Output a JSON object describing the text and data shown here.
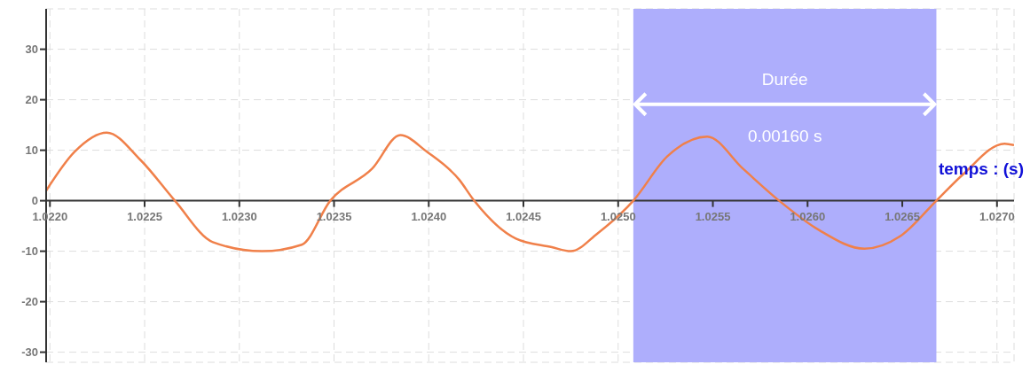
{
  "chart_data": {
    "type": "line",
    "xlabel": "temps : (s)",
    "x": [
      1.02198,
      1.02213,
      1.0223,
      1.02248,
      1.02266,
      1.02286,
      1.02312,
      1.02333,
      1.02348,
      1.0237,
      1.02385,
      1.02399,
      1.02416,
      1.02424,
      1.02446,
      1.02465,
      1.02475,
      1.02489,
      1.02508,
      1.02526,
      1.02547,
      1.02566,
      1.02585,
      1.02606,
      1.0263,
      1.02649,
      1.02668,
      1.02682,
      1.02704,
      1.02709
    ],
    "values": [
      2,
      9.7,
      13.5,
      8,
      0,
      -8.2,
      -10,
      -8.7,
      0,
      6.3,
      13,
      9.7,
      4.2,
      0,
      -7.5,
      -9.2,
      -10,
      -6.5,
      0,
      8.8,
      12.7,
      6.3,
      0,
      -5.8,
      -9.5,
      -7,
      0,
      5.2,
      11.3,
      11
    ],
    "color": "#f0804a",
    "xlim": [
      1.02198,
      1.02709
    ],
    "xticks": [
      {
        "value": 1.022,
        "label": "1.0220"
      },
      {
        "value": 1.0225,
        "label": "1.0225"
      },
      {
        "value": 1.023,
        "label": "1.0230"
      },
      {
        "value": 1.0235,
        "label": "1.0235"
      },
      {
        "value": 1.024,
        "label": "1.0240"
      },
      {
        "value": 1.0245,
        "label": "1.0245"
      },
      {
        "value": 1.025,
        "label": "1.0250"
      },
      {
        "value": 1.0255,
        "label": "1.0255"
      },
      {
        "value": 1.026,
        "label": "1.0260"
      },
      {
        "value": 1.0265,
        "label": "1.0265"
      },
      {
        "value": 1.027,
        "label": "1.0270"
      }
    ],
    "ylim": [
      -32,
      38
    ],
    "yticks": [
      -30,
      -20,
      -10,
      0,
      10,
      20,
      30
    ],
    "grid": true,
    "marker": "none",
    "bands": [
      {
        "axis": "x",
        "from": 1.02508,
        "to": 1.02668,
        "label": "Durée",
        "color": "#aeaefc"
      }
    ],
    "annotations": [
      "0.00160 s"
    ]
  }
}
